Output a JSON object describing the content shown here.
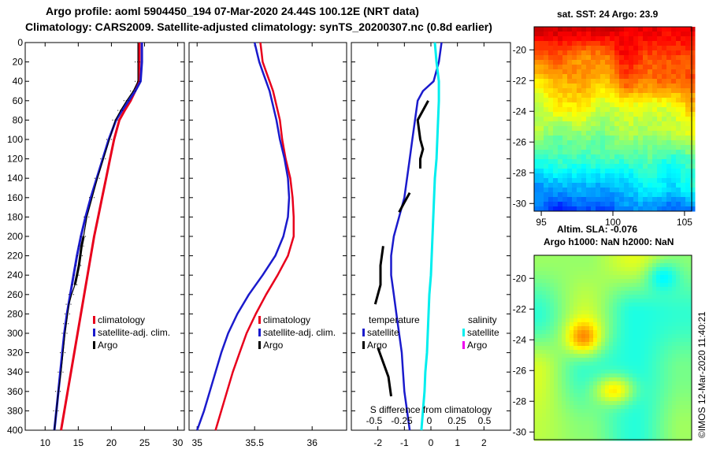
{
  "header": {
    "line1": "Argo profile: aoml 5904450_194 07-Mar-2020 24.44S 100.12E (NRT data)",
    "line2": "Climatology: CARS2009. Satellite-adjusted climatology: synTS_20200307.nc (0.8d earlier)"
  },
  "imos_stamp": "©IMOS 12-Mar-2020 11:40:21",
  "colors": {
    "climatology": "#e8001c",
    "satellite": "#1a1acc",
    "argo": "#000000",
    "sat_salinity": "#00eeee",
    "argo_salinity": "#ee00ee"
  },
  "chart_data": [
    {
      "id": "temperature-profile",
      "type": "line",
      "xlim": [
        7,
        31
      ],
      "xticks": [
        "10",
        "15",
        "20",
        "25",
        "30"
      ],
      "xtick_values": [
        10,
        15,
        20,
        25,
        30
      ],
      "ylim": [
        0,
        400
      ],
      "yticks": [
        "0",
        "20",
        "40",
        "60",
        "80",
        "100",
        "120",
        "140",
        "160",
        "180",
        "200",
        "220",
        "240",
        "260",
        "280",
        "300",
        "320",
        "340",
        "360",
        "380",
        "400"
      ],
      "legend": [
        "climatology",
        "satellite-adj. clim.",
        "Argo"
      ],
      "series": [
        {
          "name": "climatology",
          "depth": [
            0,
            20,
            40,
            50,
            60,
            70,
            80,
            100,
            120,
            140,
            160,
            180,
            200,
            220,
            240,
            260,
            280,
            300,
            320,
            340,
            360,
            380,
            400
          ],
          "values": [
            24.2,
            24.2,
            24.1,
            23.6,
            22.9,
            22.0,
            21.2,
            20.4,
            19.8,
            19.2,
            18.6,
            18.0,
            17.4,
            16.9,
            16.4,
            15.9,
            15.4,
            14.9,
            14.4,
            13.9,
            13.4,
            12.9,
            12.4
          ]
        },
        {
          "name": "satellite-adj. clim.",
          "depth": [
            0,
            20,
            40,
            50,
            60,
            70,
            80,
            100,
            120,
            140,
            160,
            180,
            200,
            220,
            240,
            260,
            280,
            300,
            320,
            340,
            360,
            380,
            400
          ],
          "values": [
            24.6,
            24.6,
            24.4,
            23.6,
            22.6,
            21.6,
            20.7,
            19.6,
            18.7,
            17.8,
            16.9,
            16.1,
            15.4,
            14.8,
            14.3,
            13.8,
            13.3,
            12.9,
            12.6,
            12.3,
            12.0,
            11.7,
            11.4
          ]
        },
        {
          "name": "Argo",
          "depth": [
            0,
            20,
            40,
            50,
            60,
            70,
            80,
            100,
            120,
            140,
            160,
            180,
            200,
            210,
            220,
            230,
            240,
            250,
            260,
            270,
            280,
            290,
            300,
            320,
            340,
            360,
            380,
            400
          ],
          "values": [
            24.0,
            24.0,
            24.0,
            23.3,
            22.3,
            21.4,
            20.6,
            19.7,
            18.8,
            17.9,
            17.1,
            16.3,
            15.8,
            15.5,
            15.3,
            15.1,
            14.8,
            14.5,
            14.0,
            13.6,
            13.4,
            13.2,
            13.0,
            12.7,
            12.4,
            12.0,
            11.7,
            11.4
          ]
        }
      ]
    },
    {
      "id": "salinity-profile",
      "type": "line",
      "xlim": [
        34.93,
        36.3
      ],
      "xticks": [
        "35",
        "35.5",
        "36"
      ],
      "xtick_values": [
        35,
        35.5,
        36
      ],
      "ylim": [
        0,
        400
      ],
      "legend": [
        "climatology",
        "satellite-adj. clim.",
        "Argo"
      ],
      "series": [
        {
          "name": "climatology",
          "depth": [
            0,
            10,
            20,
            30,
            40,
            50,
            60,
            80,
            100,
            120,
            140,
            160,
            180,
            200,
            220,
            240,
            260,
            280,
            300,
            320,
            340,
            360,
            380,
            400
          ],
          "values": [
            35.55,
            35.56,
            35.57,
            35.6,
            35.63,
            35.66,
            35.68,
            35.72,
            35.74,
            35.77,
            35.81,
            35.83,
            35.84,
            35.84,
            35.79,
            35.7,
            35.6,
            35.51,
            35.43,
            35.37,
            35.31,
            35.26,
            35.21,
            35.16
          ]
        },
        {
          "name": "satellite-adj. clim.",
          "depth": [
            0,
            10,
            20,
            30,
            40,
            50,
            60,
            80,
            100,
            120,
            140,
            160,
            180,
            200,
            220,
            240,
            260,
            280,
            300,
            320,
            340,
            360,
            380,
            400
          ],
          "values": [
            35.5,
            35.52,
            35.54,
            35.57,
            35.6,
            35.63,
            35.65,
            35.69,
            35.72,
            35.76,
            35.79,
            35.8,
            35.79,
            35.75,
            35.68,
            35.57,
            35.45,
            35.35,
            35.27,
            35.21,
            35.16,
            35.11,
            35.06,
            35.0
          ]
        }
      ]
    },
    {
      "id": "difference-profile",
      "type": "line",
      "xlim": [
        -3,
        3
      ],
      "xticks": [
        "-2",
        "-1",
        "0",
        "1",
        "2"
      ],
      "xtick_values": [
        -2,
        -1,
        0,
        1,
        2
      ],
      "secondary_xlabel": "S difference from climatology",
      "secondary_xticks": [
        "-0.5",
        "-0.25",
        "0",
        "0.25",
        "0.5"
      ],
      "secondary_xtick_values": [
        -0.5,
        -0.25,
        0,
        0.25,
        0.5
      ],
      "ylim": [
        0,
        400
      ],
      "legend": {
        "temperature": [
          "satellite",
          "Argo"
        ],
        "salinity": [
          "satellite",
          "Argo"
        ]
      },
      "series": [
        {
          "name": "temperature satellite",
          "depth": [
            0,
            20,
            40,
            50,
            60,
            80,
            100,
            120,
            140,
            160,
            180,
            200,
            220,
            240,
            260,
            280,
            300,
            320,
            340,
            360,
            380,
            400
          ],
          "values": [
            0.4,
            0.3,
            0.1,
            -0.3,
            -0.5,
            -0.6,
            -0.7,
            -0.8,
            -0.9,
            -1.0,
            -1.2,
            -1.4,
            -1.5,
            -1.5,
            -1.4,
            -1.3,
            -1.2,
            -1.1,
            -1.05,
            -1.0,
            -0.9,
            -0.8
          ]
        },
        {
          "name": "temperature Argo",
          "segments": [
            {
              "depth": [
                60,
                70,
                80,
                100,
                110,
                120,
                130
              ],
              "values": [
                -0.1,
                -0.3,
                -0.5,
                -0.4,
                -0.3,
                -0.4,
                -0.4
              ]
            },
            {
              "depth": [
                155,
                165,
                175
              ],
              "values": [
                -0.8,
                -1.0,
                -1.2
              ]
            },
            {
              "depth": [
                210,
                230,
                250,
                270
              ],
              "values": [
                -1.8,
                -1.9,
                -1.9,
                -2.1
              ]
            },
            {
              "depth": [
                315,
                330,
                345,
                365
              ],
              "values": [
                -2.0,
                -1.8,
                -1.6,
                -1.5
              ]
            }
          ]
        },
        {
          "name": "salinity satellite",
          "depth": [
            0,
            20,
            40,
            60,
            80,
            100,
            120,
            140,
            160,
            180,
            200,
            220,
            240,
            260,
            280,
            300,
            320,
            340,
            360,
            380,
            400
          ],
          "values": [
            -0.05,
            -0.03,
            0.0,
            0.0,
            -0.01,
            -0.02,
            -0.03,
            -0.05,
            -0.06,
            -0.07,
            -0.08,
            -0.09,
            -0.1,
            -0.12,
            -0.13,
            -0.14,
            -0.15,
            -0.17,
            -0.18,
            -0.2,
            -0.22
          ]
        }
      ]
    },
    {
      "id": "sst-map",
      "type": "heatmap",
      "title": "sat. SST: 24 Argo: 23.9",
      "xlim": [
        94.5,
        105.5
      ],
      "xticks": [
        "95",
        "100",
        "105"
      ],
      "xtick_values": [
        95,
        100,
        105
      ],
      "ylim": [
        -30.5,
        -18.5
      ],
      "yticks": [
        "-20",
        "-22",
        "-24",
        "-26",
        "-28",
        "-30"
      ],
      "ytick_values": [
        -20,
        -22,
        -24,
        -26,
        -28,
        -30
      ]
    },
    {
      "id": "sla-map",
      "type": "heatmap",
      "title_lines": [
        "Altim. SLA: -0.076",
        "Argo h1000: NaN h2000: NaN"
      ],
      "ylim": [
        -30.5,
        -18.5
      ],
      "yticks": [
        "-20",
        "-22",
        "-24",
        "-26",
        "-28",
        "-30"
      ],
      "ytick_values": [
        -20,
        -22,
        -24,
        -26,
        -28,
        -30
      ]
    }
  ]
}
